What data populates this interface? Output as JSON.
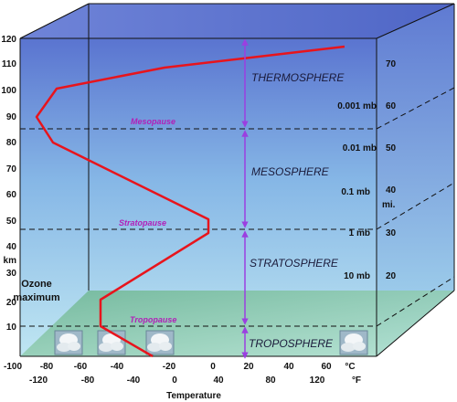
{
  "diagram": {
    "km_ticks": [
      "120",
      "110",
      "100",
      "90",
      "80",
      "70",
      "60",
      "50",
      "40",
      "30",
      "20",
      "10"
    ],
    "km_unit": "km",
    "mi_ticks": [
      "70",
      "60",
      "50",
      "40",
      "30",
      "20"
    ],
    "mi_unit": "mi.",
    "pressure_labels": [
      "0.001 mb",
      "0.01 mb",
      "0.1 mb",
      "1 mb",
      "10 mb"
    ],
    "celsius_ticks": [
      "-100",
      "-80",
      "-60",
      "-40",
      "-20",
      "0",
      "20",
      "40",
      "60"
    ],
    "celsius_unit": "°C",
    "fahrenheit_ticks": [
      "-120",
      "-80",
      "-40",
      "0",
      "40",
      "80",
      "120"
    ],
    "fahrenheit_unit": "°F",
    "x_axis_title": "Temperature",
    "layers": [
      "THERMOSPHERE",
      "MESOSPHERE",
      "STRATOSPHERE",
      "TROPOSPHERE"
    ],
    "boundaries": [
      "Mesopause",
      "Stratopause",
      "Tropopause"
    ],
    "ozone_label_line1": "Ozone",
    "ozone_label_line2": "maximum",
    "colors": {
      "box_top": "#5b78d4",
      "box_mid": "#9fd7ee",
      "ground": "#7fbf9a",
      "profile": "#e8141c",
      "arrows": "#9b3fe0",
      "boundary_text": "#b21fb8"
    },
    "icons": [
      "cloud-image",
      "cloud-image",
      "cloud-image",
      "cloud-image"
    ]
  }
}
